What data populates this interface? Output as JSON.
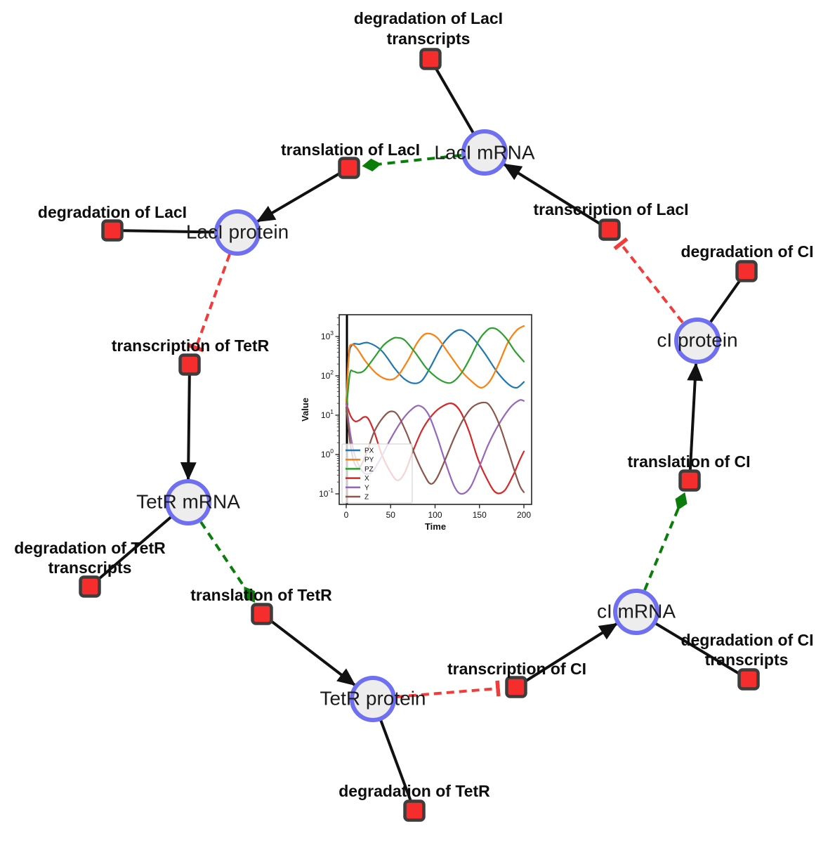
{
  "diagram": {
    "colors": {
      "species_fill": "#ededed",
      "species_stroke": "#6f6ff2",
      "reaction_fill": "#f62d2d",
      "reaction_stroke": "#3d3d3d",
      "production_edge": "#111111",
      "catalysis_edge": "#0a7d0a",
      "inhibition_edge": "#f23b3b"
    },
    "species": [
      {
        "label": "LacI mRNA"
      },
      {
        "label": "LacI protein"
      },
      {
        "label": "TetR mRNA"
      },
      {
        "label": "TetR protein"
      },
      {
        "label": "cI mRNA"
      },
      {
        "label": "cI protein"
      }
    ],
    "reactions": [
      {
        "label_line1": "degradation of LacI",
        "label_line2": "transcripts"
      },
      {
        "label": "translation of LacI"
      },
      {
        "label": "degradation of LacI"
      },
      {
        "label": "transcription of TetR"
      },
      {
        "label_line1": "degradation of TetR",
        "label_line2": "transcripts"
      },
      {
        "label": "translation of TetR"
      },
      {
        "label": "degradation of TetR"
      },
      {
        "label": "transcription of CI"
      },
      {
        "label_line1": "degradation of CI",
        "label_line2": "transcripts"
      },
      {
        "label": "translation of CI"
      },
      {
        "label": "transcription of LacI"
      },
      {
        "label": "degradation of CI"
      }
    ]
  },
  "chart_data": {
    "type": "line",
    "title": "",
    "xlabel": "Time",
    "ylabel": "Value",
    "x_ticks": [
      0,
      50,
      100,
      150,
      200
    ],
    "y_scale": "log",
    "y_tick_exponents": [
      -1,
      0,
      1,
      2,
      3
    ],
    "xlim": [
      -8,
      209
    ],
    "ylim_exponents": [
      -1.27,
      3.55
    ],
    "grid": false,
    "legend_position": "lower left",
    "initial_spike_line": {
      "x": 0.8,
      "color": "#000000"
    },
    "series": [
      {
        "name": "PX",
        "color": "#1f77b4",
        "points": [
          [
            0,
            22
          ],
          [
            3,
            320
          ],
          [
            7,
            620
          ],
          [
            15,
            640
          ],
          [
            25,
            690
          ],
          [
            40,
            430
          ],
          [
            55,
            150
          ],
          [
            65,
            85
          ],
          [
            75,
            65
          ],
          [
            85,
            75
          ],
          [
            95,
            170
          ],
          [
            110,
            700
          ],
          [
            126,
            1450
          ],
          [
            140,
            1050
          ],
          [
            155,
            400
          ],
          [
            170,
            125
          ],
          [
            183,
            60
          ],
          [
            192,
            50
          ],
          [
            200,
            70
          ]
        ]
      },
      {
        "name": "PY",
        "color": "#ff7f0e",
        "points": [
          [
            0,
            18
          ],
          [
            3,
            380
          ],
          [
            6,
            620
          ],
          [
            12,
            500
          ],
          [
            22,
            230
          ],
          [
            35,
            110
          ],
          [
            48,
            80
          ],
          [
            58,
            100
          ],
          [
            70,
            260
          ],
          [
            80,
            700
          ],
          [
            90,
            1180
          ],
          [
            102,
            950
          ],
          [
            115,
            380
          ],
          [
            130,
            130
          ],
          [
            142,
            70
          ],
          [
            152,
            50
          ],
          [
            162,
            75
          ],
          [
            172,
            210
          ],
          [
            182,
            700
          ],
          [
            192,
            1450
          ],
          [
            200,
            1850
          ]
        ]
      },
      {
        "name": "PZ",
        "color": "#2ca02c",
        "points": [
          [
            0,
            12
          ],
          [
            4,
            110
          ],
          [
            8,
            130
          ],
          [
            13,
            120
          ],
          [
            20,
            135
          ],
          [
            30,
            260
          ],
          [
            42,
            600
          ],
          [
            52,
            880
          ],
          [
            58,
            930
          ],
          [
            66,
            800
          ],
          [
            78,
            380
          ],
          [
            90,
            160
          ],
          [
            102,
            90
          ],
          [
            112,
            68
          ],
          [
            120,
            70
          ],
          [
            130,
            120
          ],
          [
            140,
            300
          ],
          [
            150,
            850
          ],
          [
            158,
            1400
          ],
          [
            163,
            1630
          ],
          [
            170,
            1500
          ],
          [
            180,
            900
          ],
          [
            190,
            420
          ],
          [
            200,
            230
          ]
        ]
      },
      {
        "name": "X",
        "color": "#d62728",
        "points": [
          [
            0,
            20
          ],
          [
            5,
            9.5
          ],
          [
            10,
            7
          ],
          [
            15,
            7.5
          ],
          [
            20,
            9
          ],
          [
            25,
            8
          ],
          [
            32,
            3.5
          ],
          [
            40,
            1
          ],
          [
            50,
            0.35
          ],
          [
            58,
            0.22
          ],
          [
            66,
            0.35
          ],
          [
            75,
            1.2
          ],
          [
            85,
            4
          ],
          [
            95,
            9
          ],
          [
            105,
            15
          ],
          [
            118,
            20
          ],
          [
            128,
            13
          ],
          [
            138,
            4
          ],
          [
            148,
            0.8
          ],
          [
            158,
            0.25
          ],
          [
            168,
            0.11
          ],
          [
            178,
            0.12
          ],
          [
            188,
            0.3
          ],
          [
            195,
            0.7
          ],
          [
            200,
            1.2
          ]
        ]
      },
      {
        "name": "Y",
        "color": "#9467bd",
        "points": [
          [
            0,
            20
          ],
          [
            5,
            3
          ],
          [
            10,
            0.9
          ],
          [
            16,
            0.45
          ],
          [
            22,
            0.32
          ],
          [
            30,
            0.38
          ],
          [
            40,
            0.9
          ],
          [
            50,
            2.5
          ],
          [
            62,
            7
          ],
          [
            72,
            13
          ],
          [
            82,
            17.5
          ],
          [
            92,
            11
          ],
          [
            102,
            3
          ],
          [
            112,
            0.6
          ],
          [
            122,
            0.15
          ],
          [
            130,
            0.1
          ],
          [
            140,
            0.15
          ],
          [
            150,
            0.5
          ],
          [
            160,
            1.8
          ],
          [
            172,
            6
          ],
          [
            185,
            16
          ],
          [
            195,
            24
          ],
          [
            200,
            23
          ]
        ]
      },
      {
        "name": "Z",
        "color": "#8c564b",
        "points": [
          [
            0,
            16
          ],
          [
            5,
            1.6
          ],
          [
            10,
            0.55
          ],
          [
            16,
            0.5
          ],
          [
            24,
            1.3
          ],
          [
            32,
            4
          ],
          [
            42,
            9
          ],
          [
            50,
            12.5
          ],
          [
            58,
            10
          ],
          [
            68,
            3.5
          ],
          [
            78,
            0.9
          ],
          [
            88,
            0.3
          ],
          [
            95,
            0.18
          ],
          [
            102,
            0.25
          ],
          [
            112,
            0.8
          ],
          [
            122,
            2.8
          ],
          [
            132,
            8
          ],
          [
            142,
            16
          ],
          [
            154,
            21
          ],
          [
            162,
            17
          ],
          [
            172,
            6
          ],
          [
            182,
            1.3
          ],
          [
            190,
            0.35
          ],
          [
            196,
            0.15
          ],
          [
            200,
            0.11
          ]
        ]
      }
    ]
  }
}
